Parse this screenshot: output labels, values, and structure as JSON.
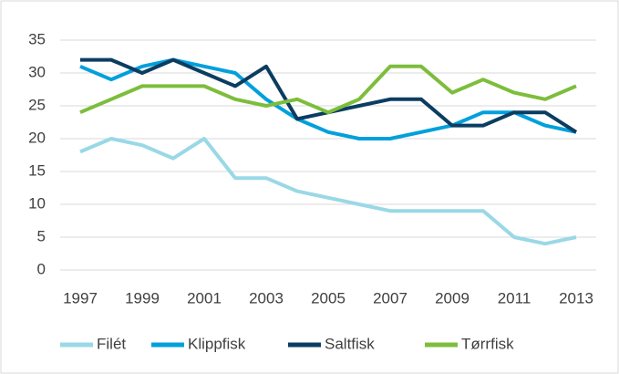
{
  "chart_data": {
    "type": "line",
    "x": [
      1997,
      1998,
      1999,
      2000,
      2001,
      2002,
      2003,
      2004,
      2005,
      2006,
      2007,
      2008,
      2009,
      2010,
      2011,
      2012,
      2013
    ],
    "xlim": [
      1997,
      2013
    ],
    "xticks": [
      1997,
      1999,
      2001,
      2003,
      2005,
      2007,
      2009,
      2011,
      2013
    ],
    "ylim": [
      0,
      35
    ],
    "yticks": [
      0,
      5,
      10,
      15,
      20,
      25,
      30,
      35
    ],
    "grid": true,
    "legend": "bottom",
    "series": [
      {
        "name": "Filét",
        "color": "#9ad8e6",
        "values": [
          18,
          20,
          19,
          17,
          20,
          14,
          14,
          12,
          11,
          10,
          9,
          9,
          9,
          9,
          5,
          4,
          5
        ]
      },
      {
        "name": "Klippfisk",
        "color": "#00a0dc",
        "values": [
          31,
          29,
          31,
          32,
          31,
          30,
          26,
          23,
          21,
          20,
          20,
          21,
          22,
          24,
          24,
          22,
          21
        ]
      },
      {
        "name": "Saltfisk",
        "color": "#0b3d61",
        "values": [
          32,
          32,
          30,
          32,
          30,
          28,
          31,
          23,
          24,
          25,
          26,
          26,
          22,
          22,
          24,
          24,
          21
        ]
      },
      {
        "name": "Tørrfisk",
        "color": "#7dbd3c",
        "values": [
          24,
          26,
          28,
          28,
          28,
          26,
          25,
          26,
          24,
          26,
          31,
          31,
          27,
          29,
          27,
          26,
          28
        ]
      }
    ]
  }
}
